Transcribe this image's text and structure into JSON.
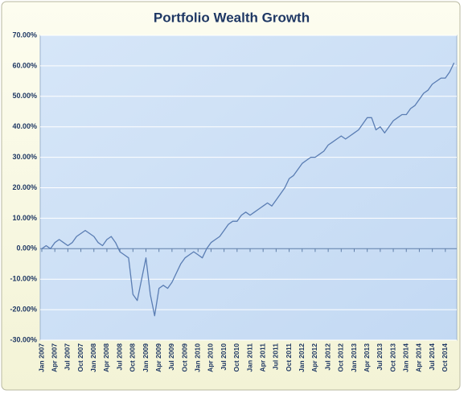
{
  "chart_data": {
    "type": "line",
    "title": "Portfolio Wealth Growth",
    "categories": [
      "Jan 2007",
      null,
      null,
      "Apr 2007",
      null,
      null,
      "Jul 2007",
      null,
      null,
      "Oct 2007",
      null,
      null,
      "Jan 2008",
      null,
      null,
      "Apr 2008",
      null,
      null,
      "Jul 2008",
      null,
      null,
      "Oct 2008",
      null,
      null,
      "Jan 2009",
      null,
      null,
      "Apr 2009",
      null,
      null,
      "Jul 2009",
      null,
      null,
      "Oct 2009",
      null,
      null,
      "Jan 2010",
      null,
      null,
      "Apr 2010",
      null,
      null,
      "Jul 2010",
      null,
      null,
      "Oct 2010",
      null,
      null,
      "Jan 2011",
      null,
      null,
      "Apr 2011",
      null,
      null,
      "Jul 2011",
      null,
      null,
      "Oct 2011",
      null,
      null,
      "Jan 2012",
      null,
      null,
      "Apr 2012",
      null,
      null,
      "Jul 2012",
      null,
      null,
      "Oct 2012",
      null,
      null,
      "Jan 2013",
      null,
      null,
      "Apr 2013",
      null,
      null,
      "Jul 2013",
      null,
      null,
      "Oct 2013",
      null,
      null,
      "Jan 2014",
      null,
      null,
      "Apr 2014",
      null,
      null,
      "Jul 2014",
      null,
      null,
      "Oct 2014",
      null,
      null
    ],
    "series": [
      {
        "color": "#5a7db3",
        "values": [
          0,
          1,
          0,
          2,
          3,
          2,
          1,
          2,
          4,
          5,
          6,
          5,
          4,
          2,
          1,
          3,
          4,
          2,
          -1,
          -2,
          -3,
          -15,
          -17,
          -10,
          -3,
          -15,
          -22,
          -13,
          -12,
          -13,
          -11,
          -8,
          -5,
          -3,
          -2,
          -1,
          -2,
          -3,
          0,
          2,
          3,
          4,
          6,
          8,
          9,
          9,
          11,
          12,
          11,
          12,
          13,
          14,
          15,
          14,
          16,
          18,
          20,
          23,
          24,
          26,
          28,
          29,
          30,
          30,
          31,
          32,
          34,
          35,
          36,
          37,
          36,
          37,
          38,
          39,
          41,
          43,
          43,
          39,
          40,
          38,
          40,
          42,
          43,
          44,
          44,
          46,
          47,
          49,
          51,
          52,
          54,
          55,
          56,
          56,
          58,
          61
        ]
      }
    ],
    "ylim": [
      -30,
      70
    ],
    "yticks": [
      {
        "value": -30,
        "label": "-30.00%"
      },
      {
        "value": -20,
        "label": "-20.00%"
      },
      {
        "value": -10,
        "label": "-10.00%"
      },
      {
        "value": 0,
        "label": "0.00%"
      },
      {
        "value": 10,
        "label": "10.00%"
      },
      {
        "value": 20,
        "label": "20.00%"
      },
      {
        "value": 30,
        "label": "30.00%"
      },
      {
        "value": 40,
        "label": "40.00%"
      },
      {
        "value": 50,
        "label": "50.00%"
      },
      {
        "value": 60,
        "label": "60.00%"
      },
      {
        "value": 70,
        "label": "70.00%"
      }
    ],
    "grid": true
  }
}
